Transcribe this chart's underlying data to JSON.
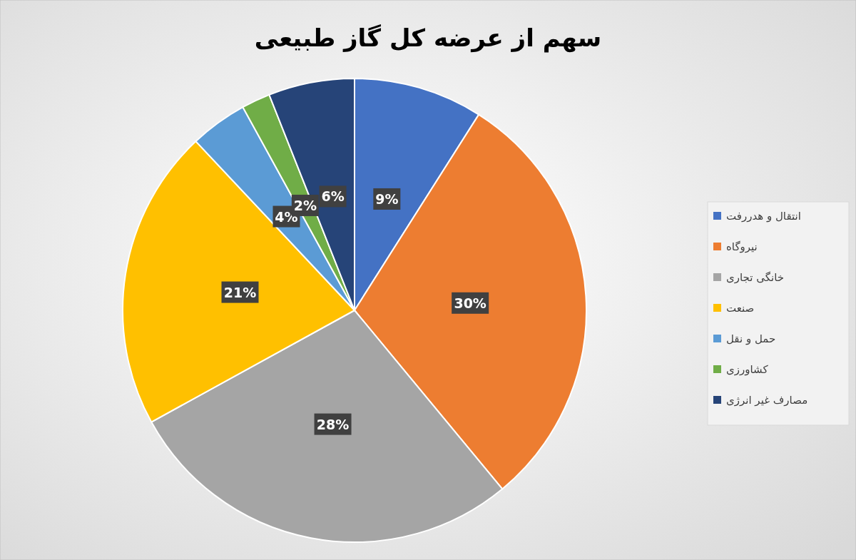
{
  "chart_data": {
    "type": "pie",
    "title": "سهم از عرضه کل گاز طبیعی",
    "categories": [
      "انتقال و هدررفت",
      "نیروگاه",
      "خانگی تجاری",
      "صنعت",
      "حمل و نقل",
      "کشاورزی",
      "مصارف غیر انرژی"
    ],
    "values": [
      9,
      30,
      28,
      21,
      4,
      2,
      6
    ],
    "colors": [
      "#4472c4",
      "#ed7d31",
      "#a5a5a5",
      "#ffc000",
      "#5b9bd5",
      "#70ad47",
      "#264478"
    ],
    "value_labels": [
      "9%",
      "30%",
      "28%",
      "21%",
      "4%",
      "2%",
      "6%"
    ],
    "legend": "right"
  }
}
